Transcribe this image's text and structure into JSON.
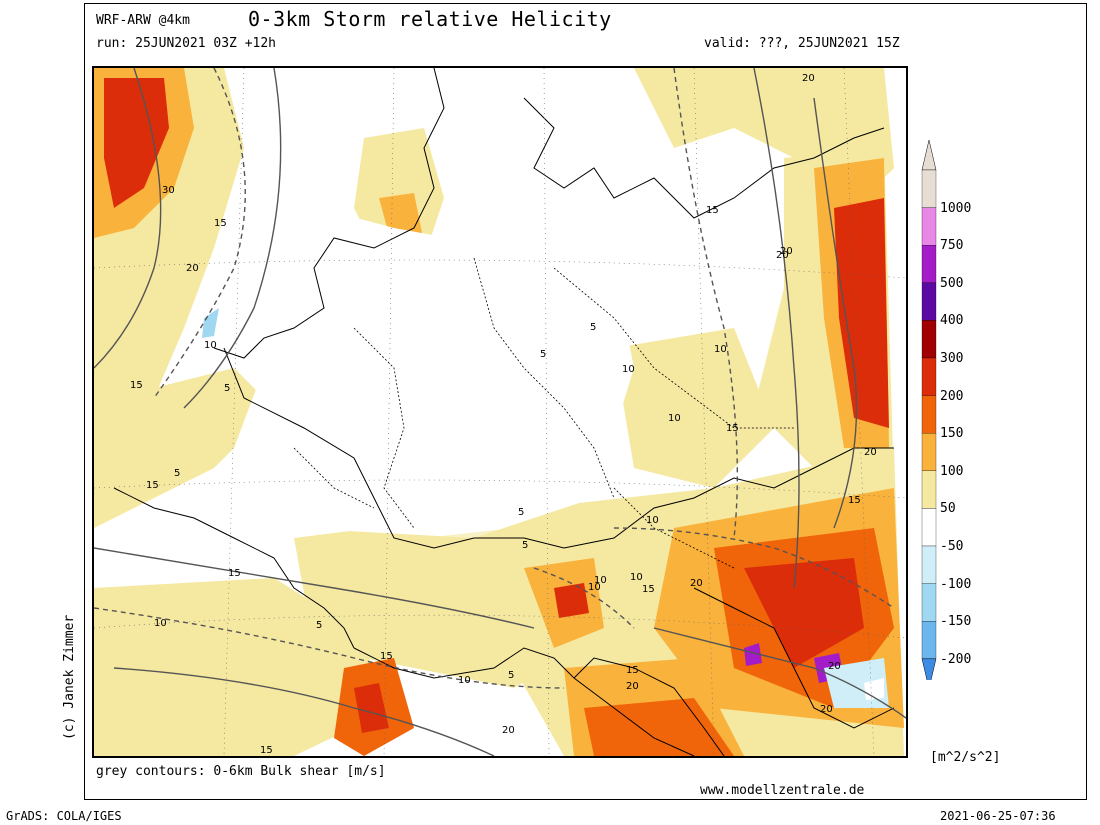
{
  "header": {
    "model": "WRF-ARW @4km",
    "title": "0-3km Storm relative Helicity",
    "run": "run: 25JUN2021 03Z +12h",
    "valid": "valid: ???, 25JUN2021 15Z"
  },
  "footer": {
    "contour_note": "grey contours: 0-6km Bulk shear [m/s]",
    "website": "www.modellzentrale.de",
    "copyright": "(c) Janek Zimmer",
    "software": "GrADS: COLA/IGES",
    "timestamp": "2021-06-25-07:36",
    "units": "[m^2/s^2]"
  },
  "colorbar": {
    "levels": [
      {
        "label": "1000",
        "color": "#e6ddd3"
      },
      {
        "label": "750",
        "color": "#e887e6"
      },
      {
        "label": "500",
        "color": "#a41cc8"
      },
      {
        "label": "400",
        "color": "#5a0aa0"
      },
      {
        "label": "300",
        "color": "#a00000"
      },
      {
        "label": "200",
        "color": "#dc2d0a"
      },
      {
        "label": "150",
        "color": "#f0640a"
      },
      {
        "label": "100",
        "color": "#f9b23b"
      },
      {
        "label": "50",
        "color": "#f5e8a0"
      },
      {
        "label": "-50",
        "color": "#ffffff"
      },
      {
        "label": "-100",
        "color": "#cfeef8"
      },
      {
        "label": "-150",
        "color": "#a0d8f2"
      },
      {
        "label": "-200",
        "color": "#6cb6ee"
      }
    ],
    "bottom_tip_color": "#3c8ce6",
    "top_tip_color": "#e6ddd3"
  },
  "contour_labels": [
    "30",
    "15",
    "20",
    "10",
    "15",
    "5",
    "5",
    "10",
    "15",
    "15",
    "20",
    "5",
    "10",
    "5",
    "10",
    "10",
    "10",
    "15",
    "20",
    "20",
    "15",
    "5",
    "10",
    "15",
    "10",
    "15",
    "20",
    "20",
    "15",
    "20",
    "20",
    "20",
    "20",
    "5",
    "15",
    "10",
    "5",
    "10",
    "5",
    "15"
  ]
}
